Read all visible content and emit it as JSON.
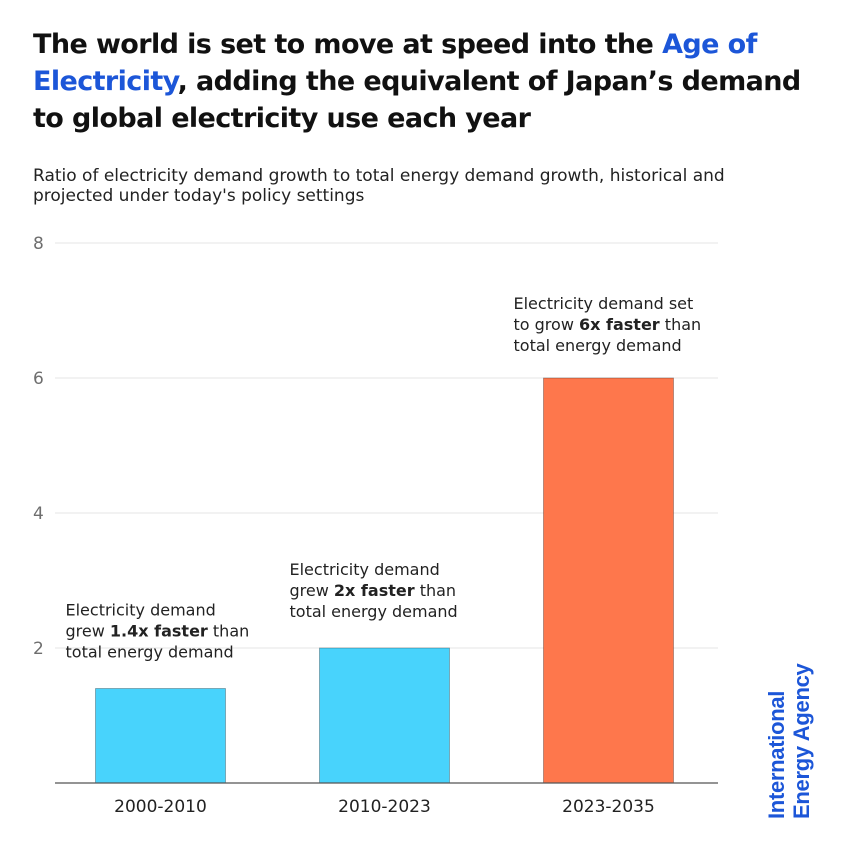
{
  "title": {
    "line1": "The world is set to move at speed into the",
    "highlight": "Age of Electricity",
    "rest": ", adding the equivalent of Japan’s demand to global electricity use each year"
  },
  "subtitle": "Ratio of electricity demand growth to total energy demand growth, historical and projected under today's policy settings",
  "logo": {
    "line1": "International",
    "line2": "Energy Agency"
  },
  "colors": {
    "historical": "#48d3fc",
    "projected": "#fe774c",
    "accent": "#1c56d8",
    "grid": "#e6e6e6",
    "axis": "#555555"
  },
  "chart_data": {
    "type": "bar",
    "categories": [
      "2000-2010",
      "2010-2023",
      "2023-2035"
    ],
    "values": [
      1.4,
      2,
      6
    ],
    "bar_colors": [
      "#48d3fc",
      "#48d3fc",
      "#fe774c"
    ],
    "ylim": [
      0,
      8
    ],
    "yticks": [
      2,
      4,
      6,
      8
    ],
    "grid": true,
    "annotations": [
      {
        "category": "2000-2010",
        "lines": [
          [
            {
              "text": "Electricity demand",
              "bold": false
            }
          ],
          [
            {
              "text": "grew ",
              "bold": false
            },
            {
              "text": "1.4x faster",
              "bold": true
            },
            {
              "text": " than",
              "bold": false
            }
          ],
          [
            {
              "text": "total energy demand",
              "bold": false
            }
          ]
        ]
      },
      {
        "category": "2010-2023",
        "lines": [
          [
            {
              "text": "Electricity demand",
              "bold": false
            }
          ],
          [
            {
              "text": "grew ",
              "bold": false
            },
            {
              "text": "2x faster",
              "bold": true
            },
            {
              "text": " than",
              "bold": false
            }
          ],
          [
            {
              "text": "total energy demand",
              "bold": false
            }
          ]
        ]
      },
      {
        "category": "2023-2035",
        "lines": [
          [
            {
              "text": "Electricity demand set",
              "bold": false
            }
          ],
          [
            {
              "text": "to grow ",
              "bold": false
            },
            {
              "text": "6x faster",
              "bold": true
            },
            {
              "text": " than",
              "bold": false
            }
          ],
          [
            {
              "text": "total energy demand",
              "bold": false
            }
          ]
        ]
      }
    ]
  }
}
